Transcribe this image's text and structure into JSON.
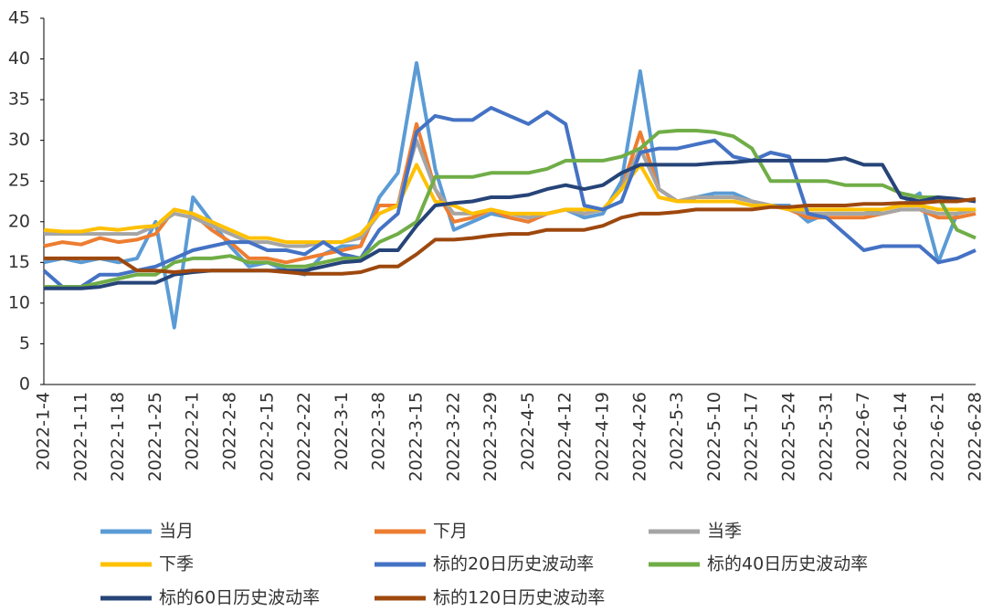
{
  "chart_data": {
    "type": "line",
    "categories": [
      "2022-1-4",
      null,
      "2022-1-11",
      null,
      "2022-1-18",
      null,
      "2022-1-25",
      null,
      "2022-2-1",
      null,
      "2022-2-8",
      null,
      "2022-2-15",
      null,
      "2022-2-22",
      null,
      "2022-3-1",
      null,
      "2022-3-8",
      null,
      "2022-3-15",
      null,
      "2022-3-22",
      null,
      "2022-3-29",
      null,
      "2022-4-5",
      null,
      "2022-4-12",
      null,
      "2022-4-19",
      null,
      "2022-4-26",
      null,
      "2022-5-3",
      null,
      "2022-5-10",
      null,
      "2022-5-17",
      null,
      "2022-5-24",
      null,
      "2022-5-31",
      null,
      "2022-6-7",
      null,
      "2022-6-14",
      null,
      "2022-6-21",
      null,
      "2022-6-28"
    ],
    "ylim": [
      0,
      45
    ],
    "yticks": [
      0,
      5,
      10,
      15,
      20,
      25,
      30,
      35,
      40,
      45
    ],
    "series": [
      {
        "name": "当月",
        "color": "#5b9bd5",
        "values": [
          15,
          15.5,
          15,
          15.5,
          15,
          15.5,
          20,
          7,
          23,
          20,
          17,
          14.5,
          15,
          14,
          13.5,
          16,
          17,
          17,
          23,
          26,
          39.5,
          26.5,
          19,
          20,
          21,
          20.5,
          20,
          21,
          21.5,
          20.5,
          21,
          25,
          38.5,
          24,
          22.5,
          23,
          23.5,
          23.5,
          22.5,
          22,
          22,
          20,
          21,
          21,
          21,
          21.5,
          22,
          23.5,
          15,
          21,
          21.5
        ]
      },
      {
        "name": "下月",
        "color": "#ed7d31",
        "values": [
          17,
          17.5,
          17.2,
          18,
          17.5,
          17.8,
          18.5,
          21.5,
          21,
          19,
          17.5,
          15.5,
          15.5,
          15,
          15.5,
          16,
          16.5,
          17,
          22,
          22,
          32,
          24,
          20,
          20.5,
          21.5,
          20.5,
          20,
          21,
          21.5,
          21,
          21.5,
          24,
          31,
          24,
          22.5,
          23,
          23,
          23,
          22.5,
          22,
          21.5,
          20.5,
          20.5,
          20.5,
          20.5,
          21,
          21.5,
          21.5,
          20.5,
          20.5,
          21
        ]
      },
      {
        "name": "当季",
        "color": "#a5a5a5",
        "values": [
          18.5,
          18.5,
          18.5,
          18.5,
          18.5,
          18.5,
          19.5,
          21,
          20.5,
          19.5,
          18.5,
          17.5,
          17.5,
          17,
          17,
          17.5,
          17.5,
          18,
          21,
          22,
          30,
          24,
          21,
          21,
          21.5,
          21,
          20.5,
          21,
          21.5,
          21,
          21.5,
          24,
          29,
          24,
          22.5,
          23,
          23,
          23,
          22.5,
          22,
          21.5,
          21,
          21,
          21,
          21,
          21,
          21.5,
          21.5,
          21,
          21,
          21.5
        ]
      },
      {
        "name": "下季",
        "color": "#ffc000",
        "values": [
          19,
          18.8,
          18.8,
          19.2,
          19,
          19.3,
          19.5,
          21.5,
          21,
          20,
          19,
          18,
          18,
          17.5,
          17.5,
          17.5,
          17.5,
          18.5,
          21,
          22,
          27,
          22.5,
          22,
          21,
          21.5,
          21,
          21,
          21,
          21.5,
          21.5,
          21.5,
          24,
          27,
          23,
          22.5,
          22.5,
          22.5,
          22.5,
          22,
          22,
          21.5,
          21.5,
          21.5,
          21.5,
          21.5,
          21.5,
          22,
          22,
          21.5,
          21.5,
          21.5
        ]
      },
      {
        "name": "标的20日历史波动率",
        "color": "#4472c4",
        "values": [
          14,
          12,
          12,
          13.5,
          13.5,
          14,
          14.5,
          15.5,
          16.5,
          17,
          17.5,
          17.5,
          16.5,
          16.5,
          16,
          17.5,
          16,
          15.5,
          19,
          21,
          31,
          33,
          32.5,
          32.5,
          34,
          33,
          32,
          33.5,
          32,
          22,
          21.5,
          22.5,
          28.5,
          29,
          29,
          29.5,
          30,
          28,
          27.5,
          28.5,
          28,
          21,
          20.5,
          18.5,
          16.5,
          17,
          17,
          17,
          15,
          15.5,
          16.5
        ]
      },
      {
        "name": "标的40日历史波动率",
        "color": "#70ad47",
        "values": [
          12,
          12,
          12,
          12.5,
          13,
          13.5,
          13.5,
          15,
          15.5,
          15.5,
          15.8,
          15,
          15,
          14.5,
          14.5,
          15,
          15.5,
          15.5,
          17.5,
          18.5,
          20,
          25.5,
          25.5,
          25.5,
          26,
          26,
          26,
          26.5,
          27.5,
          27.5,
          27.5,
          28,
          29,
          31,
          31.2,
          31.2,
          31,
          30.5,
          29,
          25,
          25,
          25,
          25,
          24.5,
          24.5,
          24.5,
          23.5,
          23,
          23,
          19,
          18
        ]
      },
      {
        "name": "标的60日历史波动率",
        "color": "#264478",
        "values": [
          11.8,
          11.8,
          11.8,
          12,
          12.5,
          12.5,
          12.5,
          13.5,
          13.8,
          14,
          14,
          14,
          14,
          14,
          14,
          14.5,
          15,
          15.2,
          16.5,
          16.5,
          19.5,
          22,
          22.3,
          22.5,
          23,
          23,
          23.3,
          24,
          24.5,
          24,
          24.5,
          26,
          27,
          27,
          27,
          27,
          27.2,
          27.3,
          27.5,
          27.5,
          27.5,
          27.5,
          27.5,
          27.8,
          27,
          27,
          23,
          22.5,
          23,
          22.8,
          22.5
        ]
      },
      {
        "name": "标的120日历史波动率",
        "color": "#9e480e",
        "values": [
          15.5,
          15.5,
          15.5,
          15.5,
          15.5,
          14,
          14,
          13.8,
          14,
          14,
          14,
          14,
          14,
          13.8,
          13.6,
          13.6,
          13.6,
          13.8,
          14.5,
          14.5,
          16,
          17.8,
          17.8,
          18,
          18.3,
          18.5,
          18.5,
          19,
          19,
          19,
          19.5,
          20.5,
          21,
          21,
          21.2,
          21.5,
          21.5,
          21.5,
          21.5,
          21.8,
          21.8,
          22,
          22,
          22,
          22.2,
          22.2,
          22.3,
          22.3,
          22.5,
          22.5,
          22.8
        ]
      }
    ]
  }
}
